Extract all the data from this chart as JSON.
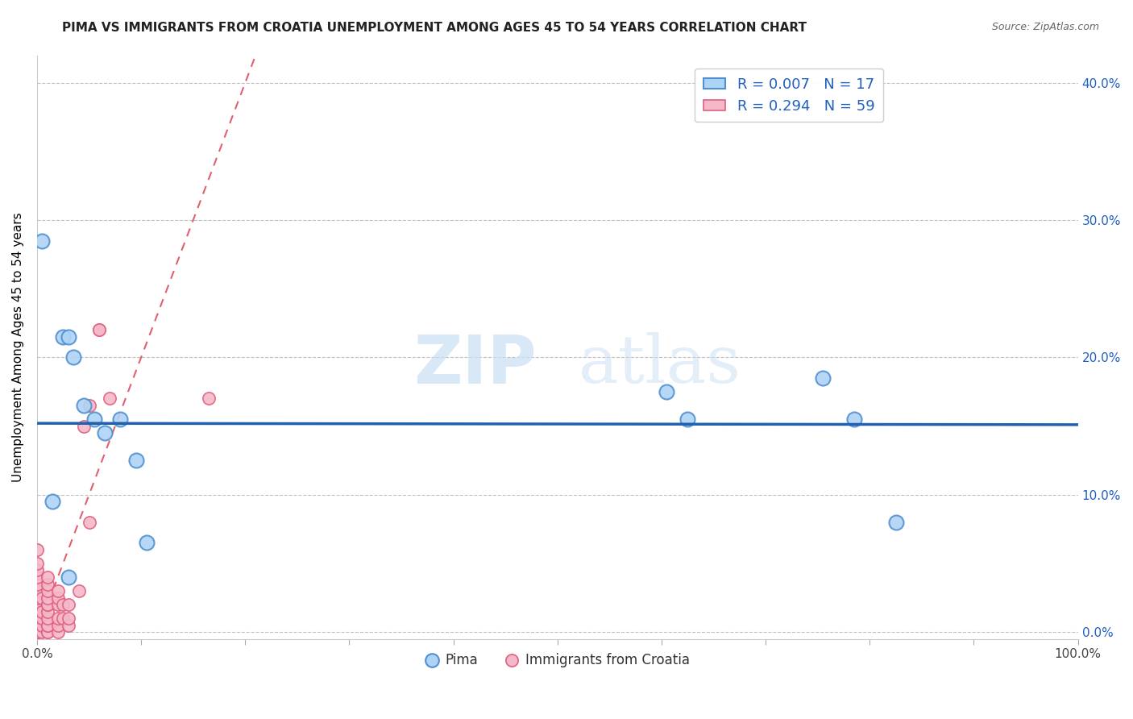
{
  "title": "PIMA VS IMMIGRANTS FROM CROATIA UNEMPLOYMENT AMONG AGES 45 TO 54 YEARS CORRELATION CHART",
  "source": "Source: ZipAtlas.com",
  "ylabel": "Unemployment Among Ages 45 to 54 years",
  "watermark_zip": "ZIP",
  "watermark_atlas": "atlas",
  "xlim": [
    0.0,
    1.0
  ],
  "ylim": [
    -0.005,
    0.42
  ],
  "xticks": [
    0.0,
    0.1,
    0.2,
    0.3,
    0.4,
    0.5,
    0.6,
    0.7,
    0.8,
    0.9,
    1.0
  ],
  "xticklabels": [
    "0.0%",
    "",
    "",
    "",
    "",
    "",
    "",
    "",
    "",
    "",
    "100.0%"
  ],
  "yticks": [
    0.0,
    0.1,
    0.2,
    0.3,
    0.4
  ],
  "yticklabels_right": [
    "0.0%",
    "10.0%",
    "20.0%",
    "30.0%",
    "40.0%"
  ],
  "pima_color": "#aed4f5",
  "croatia_color": "#f5b8c8",
  "pima_edge_color": "#5090d0",
  "croatia_edge_color": "#e06080",
  "trend_pima_color": "#2060b0",
  "trend_croatia_color": "#e06070",
  "legend_r_color": "#2060c0",
  "legend_pima_r": "R = 0.007",
  "legend_pima_n": "N = 17",
  "legend_croatia_r": "R = 0.294",
  "legend_croatia_n": "N = 59",
  "pima_x": [
    0.005,
    0.015,
    0.025,
    0.03,
    0.035,
    0.045,
    0.055,
    0.065,
    0.08,
    0.095,
    0.105,
    0.605,
    0.625,
    0.755,
    0.785,
    0.825,
    0.03
  ],
  "pima_y": [
    0.285,
    0.095,
    0.215,
    0.215,
    0.2,
    0.165,
    0.155,
    0.145,
    0.155,
    0.125,
    0.065,
    0.175,
    0.155,
    0.185,
    0.155,
    0.08,
    0.04
  ],
  "croatia_x": [
    0.0,
    0.0,
    0.0,
    0.0,
    0.0,
    0.0,
    0.0,
    0.0,
    0.0,
    0.0,
    0.0,
    0.0,
    0.0,
    0.0,
    0.0,
    0.0,
    0.0,
    0.0,
    0.0,
    0.0,
    0.0,
    0.0,
    0.0,
    0.005,
    0.005,
    0.005,
    0.005,
    0.005,
    0.01,
    0.01,
    0.01,
    0.01,
    0.01,
    0.01,
    0.01,
    0.01,
    0.01,
    0.01,
    0.01,
    0.01,
    0.02,
    0.02,
    0.02,
    0.02,
    0.02,
    0.02,
    0.025,
    0.025,
    0.03,
    0.03,
    0.03,
    0.04,
    0.045,
    0.05,
    0.05,
    0.06,
    0.06,
    0.07,
    0.165
  ],
  "croatia_y": [
    0.0,
    0.0,
    0.0,
    0.0,
    0.0,
    0.0,
    0.005,
    0.005,
    0.005,
    0.01,
    0.01,
    0.01,
    0.015,
    0.015,
    0.02,
    0.02,
    0.025,
    0.03,
    0.035,
    0.04,
    0.045,
    0.05,
    0.06,
    0.0,
    0.005,
    0.01,
    0.015,
    0.025,
    0.0,
    0.0,
    0.005,
    0.005,
    0.01,
    0.015,
    0.02,
    0.02,
    0.025,
    0.03,
    0.035,
    0.04,
    0.0,
    0.005,
    0.01,
    0.02,
    0.025,
    0.03,
    0.01,
    0.02,
    0.005,
    0.01,
    0.02,
    0.03,
    0.15,
    0.08,
    0.165,
    0.22,
    0.22,
    0.17,
    0.17
  ],
  "background_color": "#ffffff",
  "grid_color": "#bbbbbb",
  "title_fontsize": 11,
  "axis_fontsize": 11,
  "tick_fontsize": 11,
  "marker_size": 13,
  "marker_size_croatia": 11,
  "trend_pima_y_intercept": 0.152,
  "trend_pima_slope": -0.001,
  "trend_croatia_slope": 2.0,
  "trend_croatia_intercept": 0.0
}
